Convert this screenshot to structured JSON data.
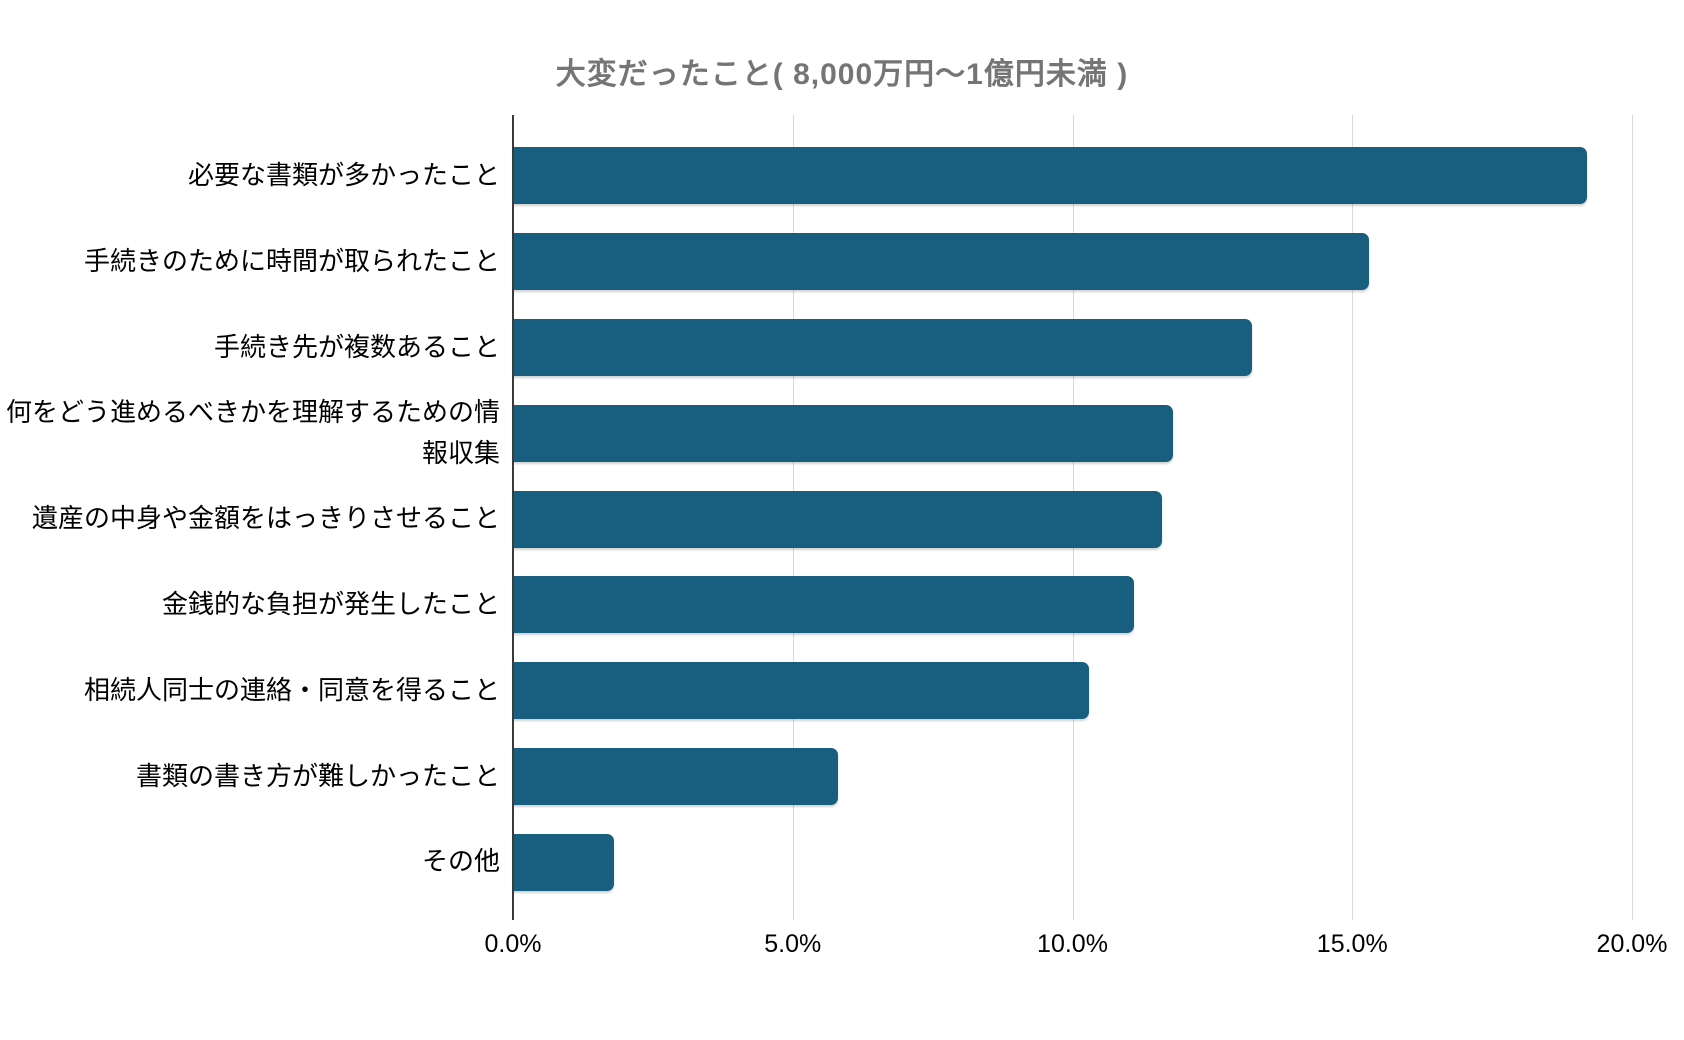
{
  "chart_data": {
    "type": "bar",
    "orientation": "horizontal",
    "title": "大変だったこと( 8,000万円～1億円未満 )",
    "categories": [
      "必要な書類が多かったこと",
      "手続きのために時間が取られたこと",
      "手続き先が複数あること",
      "何をどう進めるべきかを理解するための情報収集",
      "遺産の中身や金額をはっきりさせること",
      "金銭的な負担が発生したこと",
      "相続人同士の連絡・同意を得ること",
      "書類の書き方が難しかったこと",
      "その他"
    ],
    "values": [
      19.2,
      15.3,
      13.2,
      11.8,
      11.6,
      11.1,
      10.3,
      5.8,
      1.8
    ],
    "unit": "%",
    "xlabel": "",
    "ylabel": "",
    "xlim": [
      0,
      20
    ],
    "xticks": [
      {
        "value": 0,
        "label": "0.0%"
      },
      {
        "value": 5,
        "label": "5.0%"
      },
      {
        "value": 10,
        "label": "10.0%"
      },
      {
        "value": 15,
        "label": "15.0%"
      },
      {
        "value": 20,
        "label": "20.0%"
      }
    ],
    "grid": true,
    "legend": false,
    "colors": {
      "bar": "#185F7F",
      "title_text": "#757575",
      "label_text": "#000000",
      "axis_line": "#3a3a3a",
      "gridline": "#d9d9d9",
      "background": "#ffffff"
    }
  }
}
